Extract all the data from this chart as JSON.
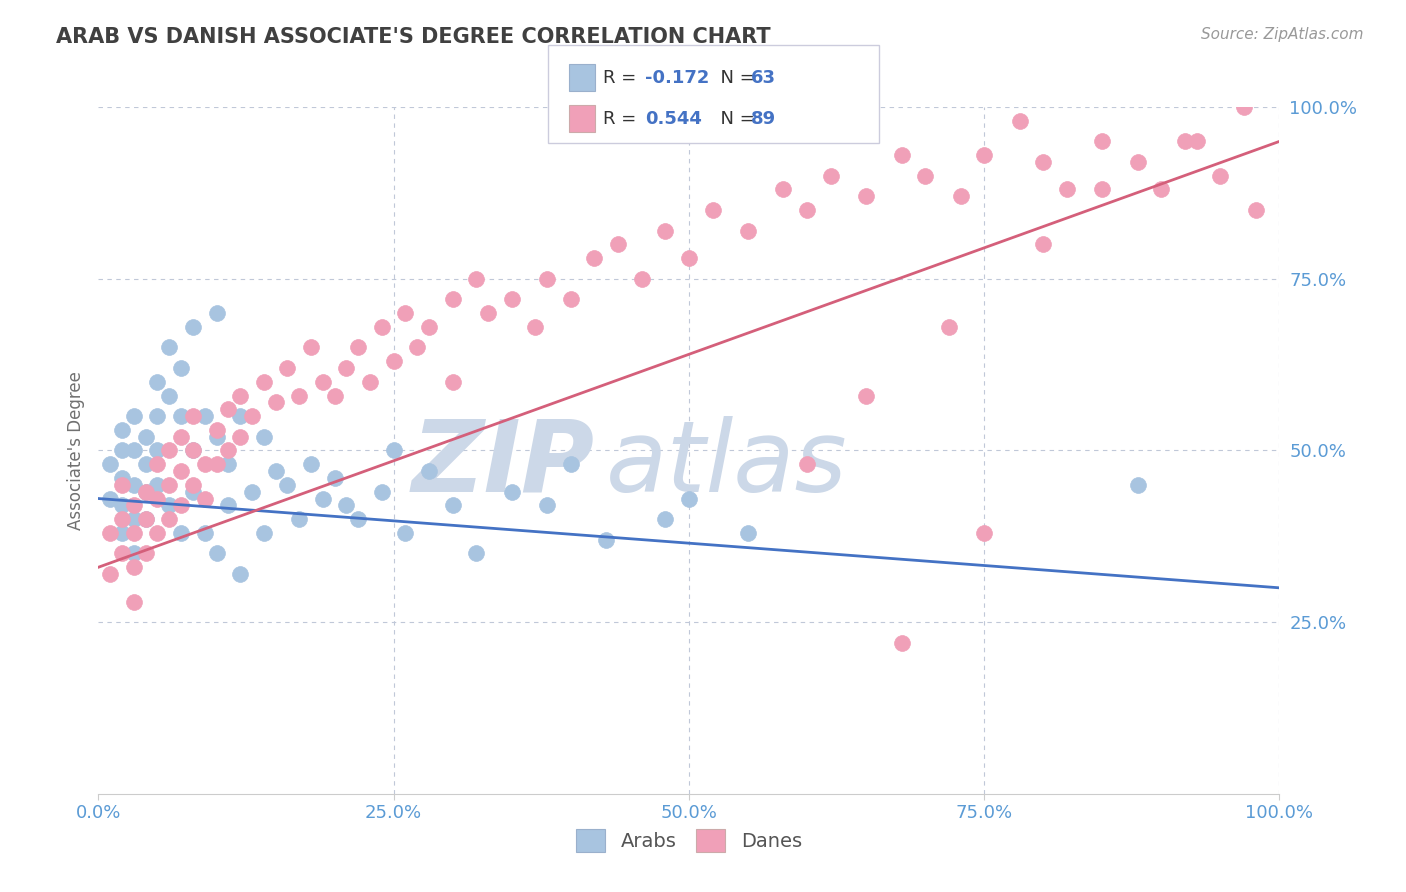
{
  "title": "ARAB VS DANISH ASSOCIATE'S DEGREE CORRELATION CHART",
  "source": "Source: ZipAtlas.com",
  "ylabel": "Associate's Degree",
  "arab_color": "#a8c4e0",
  "dane_color": "#f0a0b8",
  "arab_line_color": "#4472c4",
  "dane_line_color": "#d45f7a",
  "title_color": "#404040",
  "axis_color": "#5b9bd5",
  "background_color": "#ffffff",
  "grid_color": "#c0c8d8",
  "xlim": [
    0.0,
    1.0
  ],
  "ylim": [
    0.0,
    1.0
  ],
  "xticks": [
    0.0,
    0.25,
    0.5,
    0.75,
    1.0
  ],
  "yticks": [
    0.25,
    0.5,
    0.75,
    1.0
  ],
  "xticklabels": [
    "0.0%",
    "25.0%",
    "50.0%",
    "75.0%",
    "100.0%"
  ],
  "yticklabels": [
    "25.0%",
    "50.0%",
    "75.0%",
    "100.0%"
  ],
  "arab_line_x0": 0.0,
  "arab_line_y0": 0.43,
  "arab_line_x1": 1.0,
  "arab_line_y1": 0.3,
  "dane_line_x0": 0.0,
  "dane_line_y0": 0.33,
  "dane_line_x1": 1.0,
  "dane_line_y1": 0.95,
  "arab_scatter_x": [
    0.01,
    0.01,
    0.02,
    0.02,
    0.02,
    0.02,
    0.02,
    0.03,
    0.03,
    0.03,
    0.03,
    0.03,
    0.04,
    0.04,
    0.04,
    0.04,
    0.05,
    0.05,
    0.05,
    0.05,
    0.06,
    0.06,
    0.06,
    0.07,
    0.07,
    0.07,
    0.08,
    0.08,
    0.08,
    0.09,
    0.09,
    0.1,
    0.1,
    0.1,
    0.11,
    0.11,
    0.12,
    0.12,
    0.13,
    0.14,
    0.14,
    0.15,
    0.16,
    0.17,
    0.18,
    0.19,
    0.2,
    0.21,
    0.22,
    0.24,
    0.25,
    0.26,
    0.28,
    0.3,
    0.32,
    0.35,
    0.38,
    0.4,
    0.43,
    0.48,
    0.5,
    0.55,
    0.88
  ],
  "arab_scatter_y": [
    0.48,
    0.43,
    0.5,
    0.46,
    0.42,
    0.38,
    0.53,
    0.55,
    0.5,
    0.45,
    0.4,
    0.35,
    0.52,
    0.48,
    0.44,
    0.4,
    0.6,
    0.55,
    0.5,
    0.45,
    0.65,
    0.58,
    0.42,
    0.62,
    0.55,
    0.38,
    0.68,
    0.5,
    0.44,
    0.55,
    0.38,
    0.7,
    0.52,
    0.35,
    0.48,
    0.42,
    0.55,
    0.32,
    0.44,
    0.52,
    0.38,
    0.47,
    0.45,
    0.4,
    0.48,
    0.43,
    0.46,
    0.42,
    0.4,
    0.44,
    0.5,
    0.38,
    0.47,
    0.42,
    0.35,
    0.44,
    0.42,
    0.48,
    0.37,
    0.4,
    0.43,
    0.38,
    0.45
  ],
  "dane_scatter_x": [
    0.01,
    0.01,
    0.02,
    0.02,
    0.02,
    0.03,
    0.03,
    0.03,
    0.03,
    0.04,
    0.04,
    0.04,
    0.05,
    0.05,
    0.05,
    0.06,
    0.06,
    0.06,
    0.07,
    0.07,
    0.07,
    0.08,
    0.08,
    0.08,
    0.09,
    0.09,
    0.1,
    0.1,
    0.11,
    0.11,
    0.12,
    0.12,
    0.13,
    0.14,
    0.15,
    0.16,
    0.17,
    0.18,
    0.19,
    0.2,
    0.21,
    0.22,
    0.23,
    0.24,
    0.25,
    0.26,
    0.27,
    0.28,
    0.3,
    0.3,
    0.32,
    0.33,
    0.35,
    0.37,
    0.38,
    0.4,
    0.42,
    0.44,
    0.46,
    0.48,
    0.5,
    0.52,
    0.55,
    0.58,
    0.6,
    0.62,
    0.65,
    0.68,
    0.7,
    0.73,
    0.75,
    0.78,
    0.8,
    0.82,
    0.85,
    0.88,
    0.9,
    0.93,
    0.95,
    0.98,
    0.65,
    0.72,
    0.8,
    0.85,
    0.92,
    0.97,
    0.6,
    0.68,
    0.75
  ],
  "dane_scatter_y": [
    0.38,
    0.32,
    0.45,
    0.4,
    0.35,
    0.42,
    0.38,
    0.33,
    0.28,
    0.44,
    0.4,
    0.35,
    0.48,
    0.43,
    0.38,
    0.5,
    0.45,
    0.4,
    0.52,
    0.47,
    0.42,
    0.55,
    0.5,
    0.45,
    0.48,
    0.43,
    0.53,
    0.48,
    0.56,
    0.5,
    0.58,
    0.52,
    0.55,
    0.6,
    0.57,
    0.62,
    0.58,
    0.65,
    0.6,
    0.58,
    0.62,
    0.65,
    0.6,
    0.68,
    0.63,
    0.7,
    0.65,
    0.68,
    0.72,
    0.6,
    0.75,
    0.7,
    0.72,
    0.68,
    0.75,
    0.72,
    0.78,
    0.8,
    0.75,
    0.82,
    0.78,
    0.85,
    0.82,
    0.88,
    0.85,
    0.9,
    0.87,
    0.93,
    0.9,
    0.87,
    0.93,
    0.98,
    0.92,
    0.88,
    0.95,
    0.92,
    0.88,
    0.95,
    0.9,
    0.85,
    0.58,
    0.68,
    0.8,
    0.88,
    0.95,
    1.0,
    0.48,
    0.22,
    0.38
  ],
  "watermark_zip": "ZIP",
  "watermark_atlas": "atlas",
  "watermark_color": "#ccd8e8",
  "legend_arab_r": "R = -0.172",
  "legend_arab_n": "N = 63",
  "legend_dane_r": "R = 0.544",
  "legend_dane_n": "N = 89",
  "legend_r_color": "#4472c4",
  "legend_text_color": "#333333"
}
